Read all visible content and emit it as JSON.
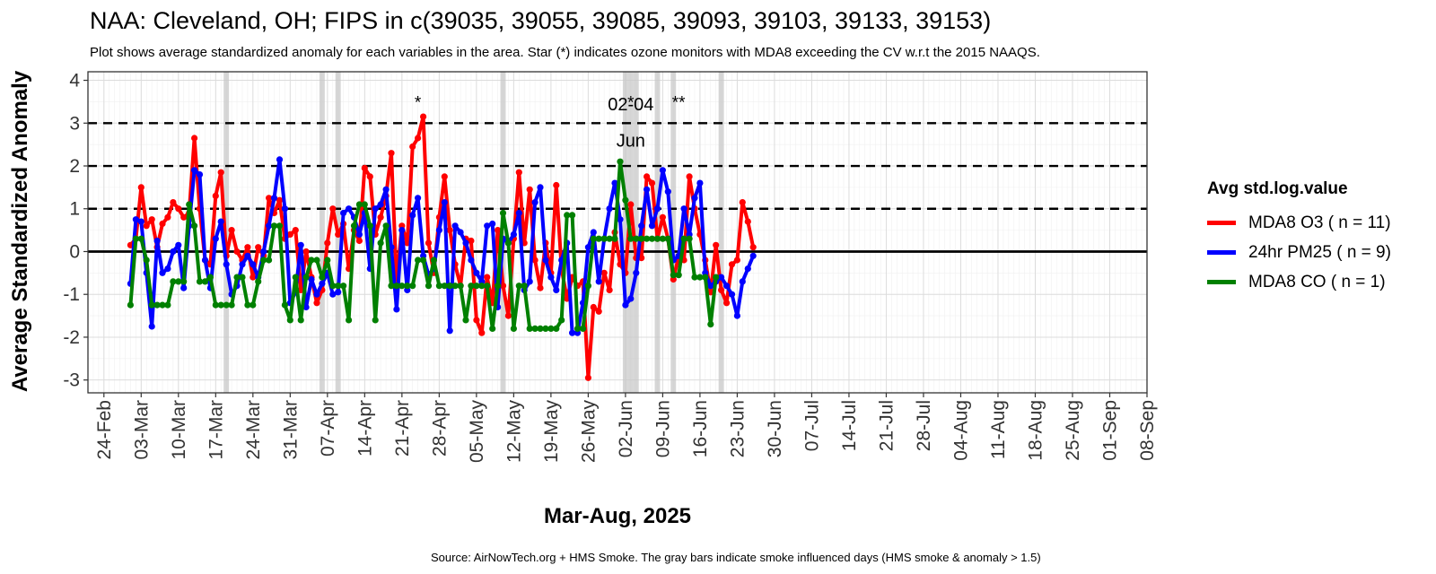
{
  "chart_data": {
    "type": "line",
    "title": "NAA: Cleveland, OH; FIPS in c(39035, 39055, 39085, 39093, 39103, 39133, 39153)",
    "subtitle": "Plot shows average standardized anomaly for each variables in the area. Star (*) indicates ozone monitors with MDA8 exceeding the CV w.r.t the 2015 NAAQS.",
    "caption": "Source: AirNowTech.org + HMS Smoke. The gray bars indicate smoke influenced days (HMS smoke & anomaly > 1.5)",
    "xlabel": "Mar-Aug, 2025",
    "ylabel": "Average Standardized Anomaly",
    "xlim": [
      "2025-02-21",
      "2025-09-08"
    ],
    "ylim": [
      -3.3,
      4.2
    ],
    "x_ticks": [
      "24-Feb",
      "03-Mar",
      "10-Mar",
      "17-Mar",
      "24-Mar",
      "31-Mar",
      "07-Apr",
      "14-Apr",
      "21-Apr",
      "28-Apr",
      "05-May",
      "12-May",
      "19-May",
      "26-May",
      "02-Jun",
      "09-Jun",
      "16-Jun",
      "23-Jun",
      "30-Jun",
      "07-Jul",
      "14-Jul",
      "21-Jul",
      "28-Jul",
      "04-Aug",
      "11-Aug",
      "18-Aug",
      "25-Aug",
      "01-Sep",
      "08-Sep"
    ],
    "y_ticks": [
      -3,
      -2,
      -1,
      0,
      1,
      2,
      3,
      4
    ],
    "reference_lines": {
      "dashed": [
        1,
        2,
        3
      ],
      "solid": [
        0
      ]
    },
    "grid": true,
    "legend": {
      "title": "Avg std.log.value",
      "position": "right"
    },
    "smoke_days": [
      "2025-03-19",
      "2025-04-06",
      "2025-04-09",
      "2025-05-10",
      "2025-06-02",
      "2025-06-03",
      "2025-06-04",
      "2025-06-08",
      "2025-06-11",
      "2025-06-20"
    ],
    "annotations": [
      {
        "date": "2025-04-24",
        "y": 3.35,
        "text": "*"
      },
      {
        "date": "2025-06-03",
        "y": 3.35,
        "text": "*"
      },
      {
        "date": "2025-06-12",
        "y": 3.35,
        "text": "**"
      },
      {
        "date": "2025-06-03",
        "y": 3.3,
        "text": "02-04"
      },
      {
        "date": "2025-06-03",
        "y": 2.45,
        "text": "Jun"
      }
    ],
    "start_date": "2025-03-01",
    "series": [
      {
        "name": "MDA8 O3 ( n = 11)",
        "color": "#ff0000",
        "values": [
          0.15,
          0.3,
          1.5,
          0.6,
          0.75,
          0.1,
          0.65,
          0.8,
          1.15,
          1.0,
          0.8,
          0.9,
          2.65,
          1.0,
          -0.2,
          -0.3,
          1.3,
          1.85,
          -0.1,
          0.5,
          0.0,
          -0.2,
          0.1,
          -0.6,
          0.1,
          -0.1,
          1.25,
          0.9,
          1.2,
          0.3,
          0.4,
          0.5,
          -0.9,
          0.0,
          -0.6,
          -1.2,
          -0.9,
          0.2,
          1.0,
          0.4,
          0.65,
          -0.4,
          0.5,
          0.25,
          1.95,
          1.75,
          0.4,
          0.8,
          1.3,
          2.3,
          -0.7,
          0.6,
          0.2,
          2.45,
          2.65,
          3.15,
          0.2,
          -0.5,
          0.8,
          1.75,
          0.5,
          -0.3,
          -0.8,
          0.3,
          0.25,
          -1.6,
          -1.9,
          -0.6,
          -1.2,
          0.5,
          -0.8,
          -1.5,
          0.3,
          1.85,
          0.2,
          1.45,
          -0.2,
          -0.85,
          0.2,
          -0.5,
          1.55,
          -0.4,
          -1.1,
          -0.6,
          -0.8,
          -0.7,
          -2.95,
          -1.3,
          -1.4,
          -0.5,
          -0.9,
          0.45,
          -0.3,
          -0.5,
          1.1,
          -0.15,
          -0.15,
          1.75,
          1.6,
          0.3,
          0.8,
          0.3,
          -0.65,
          -0.1,
          -0.2,
          1.75,
          1.0,
          0.4,
          -0.2,
          -0.95,
          0.15,
          -0.9,
          -1.2,
          -0.3,
          -0.2,
          1.15,
          0.7,
          0.1
        ]
      },
      {
        "name": "24hr PM25 ( n = 9)",
        "color": "#0000ff",
        "values": [
          -0.75,
          0.75,
          0.7,
          -0.5,
          -1.75,
          0.25,
          -0.5,
          -0.4,
          0.0,
          0.15,
          -0.85,
          0.6,
          1.9,
          1.8,
          -0.2,
          -0.85,
          0.3,
          0.7,
          -0.3,
          -1.0,
          -0.8,
          -0.3,
          -0.1,
          -0.3,
          -0.6,
          0.0,
          0.6,
          1.25,
          2.15,
          1.0,
          -1.2,
          -0.95,
          0.15,
          -1.3,
          -0.65,
          -1.0,
          -0.75,
          -0.5,
          -1.0,
          -0.95,
          0.9,
          1.0,
          0.8,
          0.4,
          0.9,
          -0.4,
          1.0,
          1.1,
          1.45,
          0.1,
          -1.35,
          0.5,
          -0.9,
          0.85,
          1.25,
          -0.1,
          -0.55,
          -0.4,
          0.5,
          1.15,
          -1.85,
          0.6,
          0.45,
          0.2,
          -0.2,
          -0.5,
          -0.7,
          0.6,
          0.65,
          -1.3,
          0.3,
          0.2,
          0.4,
          0.9,
          -0.9,
          -0.7,
          1.15,
          1.5,
          -0.2,
          -0.6,
          -0.9,
          -0.2,
          0.2,
          -1.9,
          -1.9,
          -1.2,
          0.1,
          0.45,
          -0.7,
          0.3,
          1.0,
          1.6,
          0.75,
          -1.25,
          -1.1,
          -0.5,
          0.6,
          1.45,
          0.6,
          1.0,
          1.9,
          1.4,
          -0.2,
          -0.1,
          1.0,
          0.4,
          1.25,
          1.6,
          -0.5,
          -0.8,
          -0.7,
          -0.6,
          -0.8,
          -1.0,
          -1.5,
          -0.7,
          -0.4,
          -0.1
        ]
      },
      {
        "name": "MDA8 CO ( n = 1)",
        "color": "#008000",
        "values": [
          -1.25,
          0.3,
          0.3,
          -0.2,
          -1.25,
          -1.25,
          -1.25,
          -1.25,
          -0.7,
          -0.7,
          -0.7,
          1.1,
          0.6,
          -0.7,
          -0.7,
          -0.6,
          -1.25,
          -1.25,
          -1.25,
          -1.25,
          -0.6,
          -0.6,
          -1.25,
          -1.25,
          -0.7,
          -0.2,
          -0.2,
          0.6,
          0.6,
          -1.25,
          -1.6,
          -0.6,
          -1.6,
          -0.6,
          -0.2,
          -0.2,
          -0.6,
          -0.2,
          -0.8,
          -0.8,
          -0.8,
          -1.6,
          0.6,
          1.1,
          1.1,
          0.6,
          -1.6,
          0.2,
          0.6,
          -0.8,
          -0.8,
          -0.8,
          -0.8,
          -0.8,
          -0.2,
          -0.2,
          -0.8,
          -0.2,
          -0.8,
          -0.8,
          -0.8,
          -0.8,
          -0.8,
          -1.6,
          -0.8,
          -0.8,
          -0.8,
          -0.8,
          -1.8,
          -0.8,
          0.9,
          0.2,
          -1.8,
          -0.8,
          -0.8,
          -1.8,
          -1.8,
          -1.8,
          -1.8,
          -1.8,
          -1.8,
          -1.6,
          0.85,
          0.85,
          -1.8,
          -1.8,
          -0.8,
          0.3,
          0.3,
          0.3,
          0.3,
          0.3,
          2.1,
          1.2,
          0.3,
          0.3,
          0.3,
          0.3,
          0.3,
          0.3,
          0.3,
          0.3,
          -0.55,
          -0.55,
          0.3,
          0.3,
          -0.6,
          -0.6,
          -0.6,
          -1.7,
          -0.6
        ]
      }
    ]
  }
}
